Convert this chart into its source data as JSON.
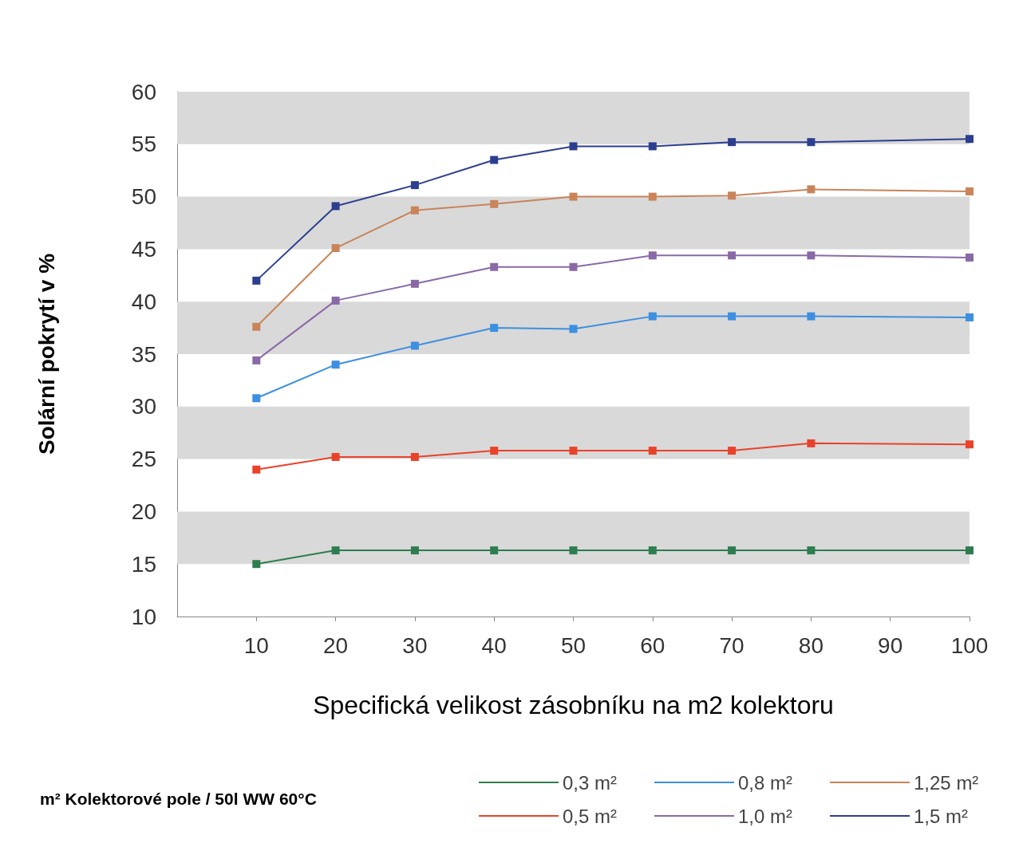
{
  "chart_data": {
    "type": "line",
    "xlabel": "Specifická velikost zásobníku na m2 kolektoru",
    "ylabel": "Solární pokrytí v %",
    "legend_title": "m² Kolektorové pole / 50l WW 60°C",
    "x": [
      10,
      20,
      30,
      40,
      50,
      60,
      70,
      80,
      100
    ],
    "series": [
      {
        "name": "0,3 m²",
        "color": "#2e7d4f",
        "values": [
          15,
          16.3,
          16.3,
          16.3,
          16.3,
          16.3,
          16.3,
          16.3,
          16.3
        ]
      },
      {
        "name": "0,5 m²",
        "color": "#e8432a",
        "values": [
          24,
          25.2,
          25.2,
          25.8,
          25.8,
          25.8,
          25.8,
          26.5,
          26.4
        ]
      },
      {
        "name": "0,8 m²",
        "color": "#3d8fe0",
        "values": [
          30.8,
          34,
          35.8,
          37.5,
          37.4,
          38.6,
          38.6,
          38.6,
          38.5
        ]
      },
      {
        "name": "1,0 m²",
        "color": "#8a6aa6",
        "values": [
          34.4,
          40.1,
          41.7,
          43.3,
          43.3,
          44.4,
          44.4,
          44.4,
          44.2
        ]
      },
      {
        "name": "1,25 m²",
        "color": "#c9845a",
        "values": [
          37.6,
          45.1,
          48.7,
          49.3,
          50,
          50,
          50.1,
          50.7,
          50.5
        ]
      },
      {
        "name": "1,5 m²",
        "color": "#2c3e8f",
        "values": [
          42,
          49.1,
          51.1,
          53.5,
          54.8,
          54.8,
          55.2,
          55.2,
          55.5
        ]
      }
    ],
    "xlim": [
      0,
      100
    ],
    "xticks": [
      10,
      20,
      30,
      40,
      50,
      60,
      70,
      80,
      90,
      100
    ],
    "ylim": [
      10,
      60
    ],
    "yticks": [
      10,
      15,
      20,
      25,
      30,
      35,
      40,
      45,
      50,
      55,
      60
    ],
    "bands": [
      {
        "axis": "y",
        "from": 15,
        "to": 20,
        "color": "#d9d9d9"
      },
      {
        "axis": "y",
        "from": 25,
        "to": 30,
        "color": "#d9d9d9"
      },
      {
        "axis": "y",
        "from": 35,
        "to": 40,
        "color": "#d9d9d9"
      },
      {
        "axis": "y",
        "from": 45,
        "to": 50,
        "color": "#d9d9d9"
      },
      {
        "axis": "y",
        "from": 55,
        "to": 60,
        "color": "#d9d9d9"
      }
    ],
    "grid": false,
    "legend": "bottom",
    "marker": "square",
    "line_style": "solid"
  }
}
